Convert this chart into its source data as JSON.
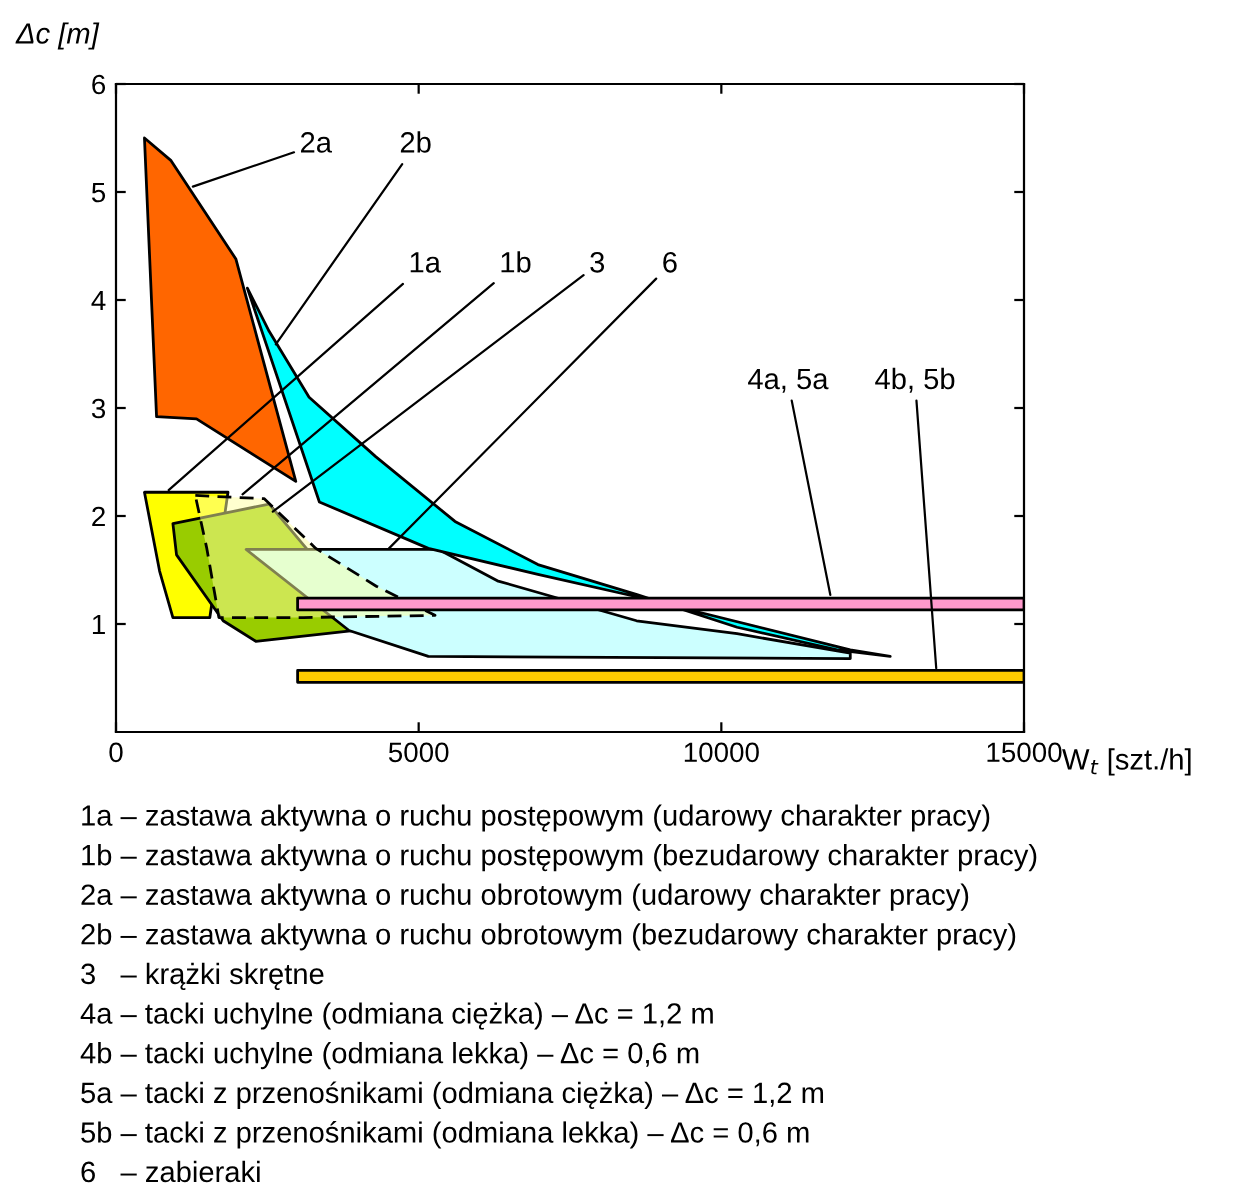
{
  "chart_data": {
    "type": "area",
    "ylabel": "Δc [m]",
    "xlabel": "W$_{t}$ [szt./h]",
    "xlim": [
      0,
      15000
    ],
    "ylim": [
      0,
      6
    ],
    "xticks": [
      0,
      5000,
      10000,
      15000
    ],
    "yticks": [
      1,
      2,
      3,
      4,
      5,
      6
    ],
    "grid": false,
    "legend": false,
    "series": [
      {
        "color": "#ffff00",
        "x": [
          470,
          1850,
          1550,
          940,
          720
        ],
        "values": [
          2.22,
          2.22,
          1.06,
          1.06,
          1.49
        ]
      },
      {
        "color": "#99cc00",
        "x": [
          940,
          2530,
          3190,
          3850,
          3950,
          2310,
          1770,
          1000
        ],
        "values": [
          1.93,
          2.11,
          1.67,
          null,
          0.94,
          0.84,
          1.03,
          1.64
        ]
      },
      {
        "color": "#ccffff",
        "x": [
          2150,
          5330,
          6300,
          8600,
          10260,
          12130,
          12130,
          5160,
          3850
        ],
        "values": [
          1.69,
          1.69,
          1.4,
          1.03,
          0.91,
          0.73,
          0.68,
          0.7,
          0.94
        ]
      },
      {
        "color": "#ffffa0",
        "line_style": "dashed",
        "x": [
          1310,
          2450,
          3300,
          4300,
          5270,
          3100,
          1700,
          1500
        ],
        "values": [
          2.19,
          2.16,
          1.7,
          1.35,
          1.08,
          1.06,
          1.06,
          1.7
        ]
      },
      {
        "color": "#ff6600",
        "x": [
          470,
          910,
          1980,
          2970,
          1330,
          670
        ],
        "values": [
          5.5,
          5.29,
          4.38,
          2.32,
          2.9,
          2.92
        ]
      },
      {
        "color": "#00ffff",
        "x": [
          2170,
          2530,
          3190,
          4290,
          5600,
          6970,
          8620,
          10260,
          11910,
          12790,
          12130,
          8620,
          6970,
          5160,
          3360
        ],
        "values": [
          4.11,
          3.71,
          3.1,
          2.55,
          1.95,
          1.55,
          1.27,
          0.97,
          0.76,
          0.7,
          0.76,
          1.25,
          1.46,
          1.7,
          2.13
        ]
      },
      {
        "color": "#ff99cc",
        "x": [
          3000,
          15000,
          15000,
          3000
        ],
        "values": [
          1.13,
          1.13,
          1.24,
          1.24
        ]
      },
      {
        "color": "#ffcc00",
        "x": [
          3000,
          15000,
          15000,
          3000
        ],
        "values": [
          0.46,
          0.46,
          0.57,
          0.57
        ]
      }
    ],
    "annotations": [
      {
        "text": "2a",
        "x": 1270,
        "y": 5.05
      },
      {
        "text": "2b",
        "x": 2640,
        "y": 3.59
      },
      {
        "text": "1a",
        "x": 870,
        "y": 2.24
      },
      {
        "text": "1b",
        "x": 2090,
        "y": 2.2
      },
      {
        "text": "3",
        "x": 2590,
        "y": 2.04
      },
      {
        "text": "6",
        "x": 4510,
        "y": 1.7
      },
      {
        "text": "4a, 5a",
        "x": 11800,
        "y": 1.27
      },
      {
        "text": "4b, 5b",
        "x": 13550,
        "y": 0.59
      },
      "1a – zastawa aktywna o ruchu postępowym (udarowy charakter pracy)",
      "1b – zastawa aktywna o ruchu postępowym (bezudarowy charakter pracy)",
      "2a – zastawa aktywna o ruchu obrotowym (udarowy charakter pracy)",
      "2b – zastawa aktywna o ruchu obrotowym (bezudarowy charakter pracy)",
      "3   – krążki skrętne",
      "4a – tacki uchylne (odmiana ciężka) – Δc = 1,2 m",
      "4b – tacki uchylne (odmiana lekka) – Δc = 0,6 m",
      "5a – tacki z przenośnikami (odmiana ciężka) – Δc = 1,2 m",
      "5b – tacki z przenośnikami (odmiana lekka) – Δc = 0,6 m",
      "6   – zabieraki"
    ]
  }
}
